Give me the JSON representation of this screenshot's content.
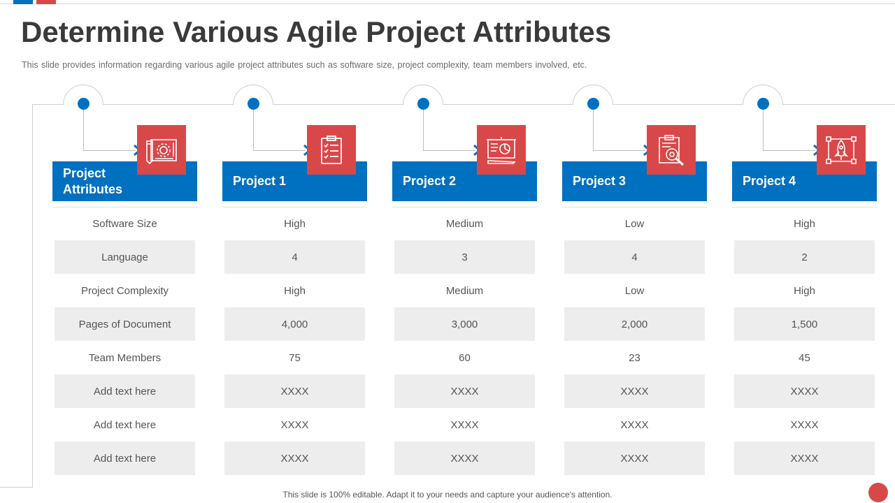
{
  "slide": {
    "title": "Determine Various Agile Project Attributes",
    "subtitle": "This slide provides information regarding various agile project attributes such as software size, project complexity, team members involved,  etc.",
    "footer": "This slide is 100% editable. Adapt it to your needs and capture your audience's attention."
  },
  "colors": {
    "blue": "#0070c0",
    "red": "#d94848",
    "row_shade": "#ededed"
  },
  "columns": [
    {
      "header": "Project Attributes",
      "icon": "blueprint-gear-icon",
      "rows": [
        "Software Size",
        "Language",
        "Project Complexity",
        "Pages of Document",
        "Team Members",
        "Add text here",
        "Add text here",
        "Add text here"
      ]
    },
    {
      "header": "Project 1",
      "icon": "clipboard-checklist-icon",
      "rows": [
        "High",
        "4",
        "High",
        "4,000",
        "75",
        "XXXX",
        "XXXX",
        "XXXX"
      ]
    },
    {
      "header": "Project 2",
      "icon": "presentation-board-icon",
      "rows": [
        "Medium",
        "3",
        "Medium",
        "3,000",
        "60",
        "XXXX",
        "XXXX",
        "XXXX"
      ]
    },
    {
      "header": "Project 3",
      "icon": "document-search-gear-icon",
      "rows": [
        "Low",
        "4",
        "Low",
        "2,000",
        "23",
        "XXXX",
        "XXXX",
        "XXXX"
      ]
    },
    {
      "header": "Project 4",
      "icon": "rocket-launch-icon",
      "rows": [
        "High",
        "2",
        "High",
        "1,500",
        "45",
        "XXXX",
        "XXXX",
        "XXXX"
      ]
    }
  ]
}
